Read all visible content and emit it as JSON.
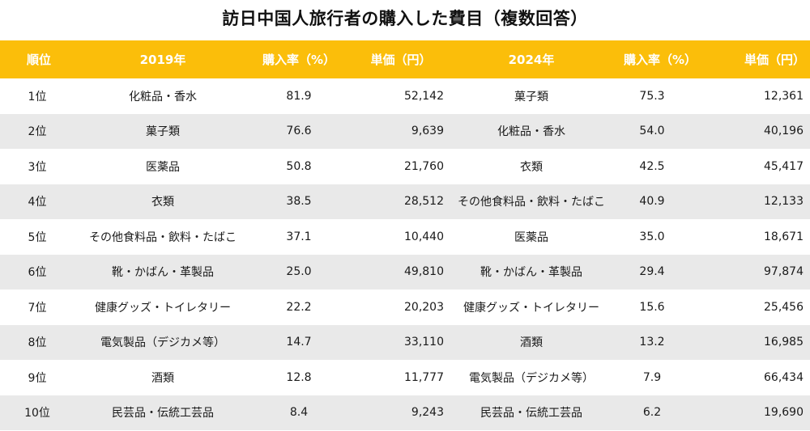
{
  "title": "訪日中国人旅行者の購入した費目（複数回答）",
  "colors": {
    "header_bg": "#fbbe0a",
    "header_text": "#ffffff",
    "stripe": "#e9e9e9"
  },
  "table": {
    "headers": {
      "rank": "順位",
      "year2019": "2019年",
      "rate2019": "購入率（%）",
      "price2019": "単価（円）",
      "year2024": "2024年",
      "rate2024": "購入率（%）",
      "price2024": "単価（円）"
    },
    "rows": [
      {
        "rank": "1位",
        "item2019": "化粧品・香水",
        "rate2019": "81.9",
        "price2019": "52,142",
        "item2024": "菓子類",
        "rate2024": "75.3",
        "price2024": "12,361"
      },
      {
        "rank": "2位",
        "item2019": "菓子類",
        "rate2019": "76.6",
        "price2019": "9,639",
        "item2024": "化粧品・香水",
        "rate2024": "54.0",
        "price2024": "40,196"
      },
      {
        "rank": "3位",
        "item2019": "医薬品",
        "rate2019": "50.8",
        "price2019": "21,760",
        "item2024": "衣類",
        "rate2024": "42.5",
        "price2024": "45,417"
      },
      {
        "rank": "4位",
        "item2019": "衣類",
        "rate2019": "38.5",
        "price2019": "28,512",
        "item2024": "その他食料品・飲料・たばこ",
        "rate2024": "40.9",
        "price2024": "12,133"
      },
      {
        "rank": "5位",
        "item2019": "その他食料品・飲料・たばこ",
        "rate2019": "37.1",
        "price2019": "10,440",
        "item2024": "医薬品",
        "rate2024": "35.0",
        "price2024": "18,671"
      },
      {
        "rank": "6位",
        "item2019": "靴・かばん・革製品",
        "rate2019": "25.0",
        "price2019": "49,810",
        "item2024": "靴・かばん・革製品",
        "rate2024": "29.4",
        "price2024": "97,874"
      },
      {
        "rank": "7位",
        "item2019": "健康グッズ・トイレタリー",
        "rate2019": "22.2",
        "price2019": "20,203",
        "item2024": "健康グッズ・トイレタリー",
        "rate2024": "15.6",
        "price2024": "25,456"
      },
      {
        "rank": "8位",
        "item2019": "電気製品（デジカメ等）",
        "rate2019": "14.7",
        "price2019": "33,110",
        "item2024": "酒類",
        "rate2024": "13.2",
        "price2024": "16,985"
      },
      {
        "rank": "9位",
        "item2019": "酒類",
        "rate2019": "12.8",
        "price2019": "11,777",
        "item2024": "電気製品（デジカメ等）",
        "rate2024": "7.9",
        "price2024": "66,434"
      },
      {
        "rank": "10位",
        "item2019": "民芸品・伝統工芸品",
        "rate2019": "8.4",
        "price2019": "9,243",
        "item2024": "民芸品・伝統工芸品",
        "rate2024": "6.2",
        "price2024": "19,690"
      }
    ]
  }
}
